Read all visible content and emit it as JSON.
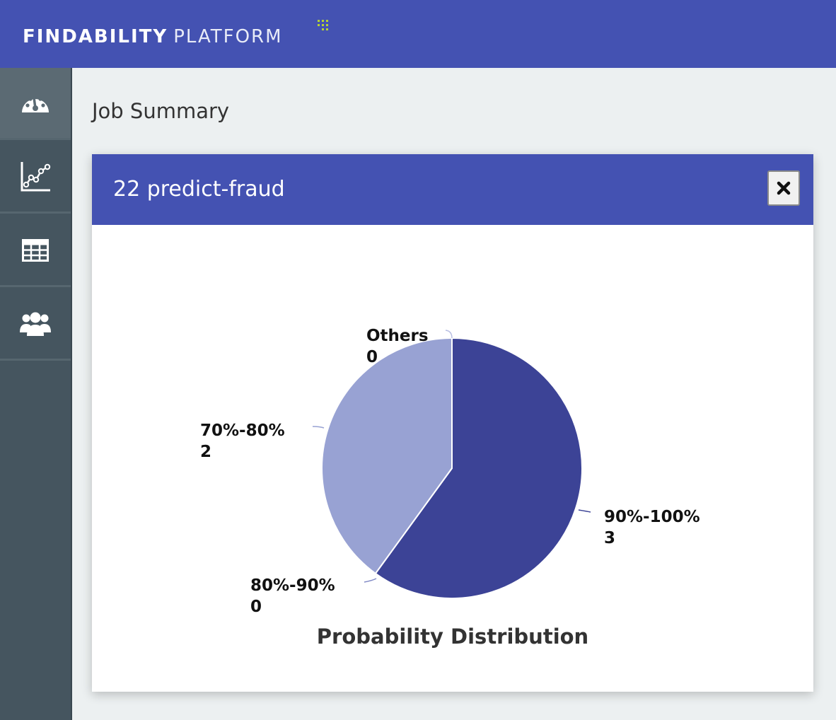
{
  "header": {
    "brand_bold": "FINDABILITY",
    "brand_light": "PLATFORM"
  },
  "sidebar": {
    "items": [
      {
        "icon": "dashboard-gauge-icon",
        "active": true
      },
      {
        "icon": "line-chart-icon",
        "active": false
      },
      {
        "icon": "table-icon",
        "active": false
      },
      {
        "icon": "users-icon",
        "active": false
      }
    ]
  },
  "page": {
    "title": "Job Summary"
  },
  "panel": {
    "title": "22 predict-fraud",
    "close_icon": "close-icon"
  },
  "colors": {
    "brand": "#4452b2",
    "sidebar": "#45555f",
    "slice_dark": "#3c4396",
    "slice_light": "#98a2d3"
  },
  "chart_data": {
    "type": "pie",
    "title": "Probability Distribution",
    "categories": [
      "90%-100%",
      "80%-90%",
      "70%-80%",
      "Others"
    ],
    "values": [
      3,
      0,
      2,
      0
    ],
    "colors": [
      "#3c4396",
      "#7f88c4",
      "#98a2d3",
      "#b8bee2"
    ]
  }
}
